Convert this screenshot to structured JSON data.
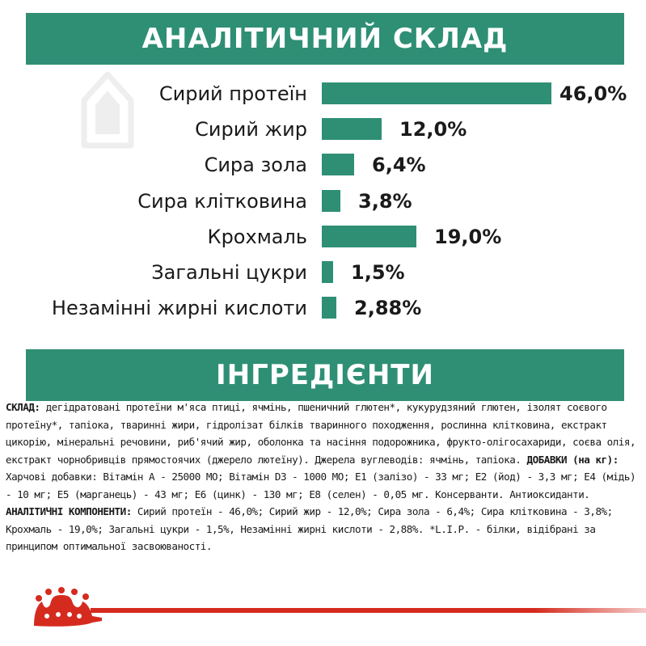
{
  "colors": {
    "accent_green": "#2e8f75",
    "brand_red": "#d52b1e",
    "text": "#1a1a1a"
  },
  "section_analysis": {
    "title": "АНАЛІТИЧНИЙ СКЛАД"
  },
  "section_ingredients": {
    "title": "ІНГРЕДІЄНТИ"
  },
  "chart_data": {
    "type": "bar",
    "orientation": "horizontal",
    "title": "АНАЛІТИЧНИЙ СКЛАД",
    "categories": [
      "Сирий протеїн",
      "Сирий жир",
      "Сира зола",
      "Сира клітковина",
      "Крохмаль",
      "Загальні цукри",
      "Незамінні жирні кислоти"
    ],
    "values": [
      46.0,
      12.0,
      6.4,
      3.8,
      19.0,
      1.5,
      2.88
    ],
    "value_labels": [
      "46,0%",
      "12,0%",
      "6,4%",
      "3,8%",
      "19,0%",
      "1,5%",
      "2,88%"
    ],
    "unit": "%",
    "xlim": [
      0,
      46.0
    ],
    "grid": false,
    "legend": "none"
  },
  "ingredients": {
    "composition_label": "СКЛАД:",
    "composition_text": " дегідратовані протеїни м'яса птиці, ячмінь, пшеничний глютен*, кукурудзяний глютен, ізолят соєвого протеїну*, тапіока, тваринні жири, гідролізат білків тваринного походження, рослинна клітковина, екстракт цикорію, мінеральні речовини, риб'ячий жир, оболонка та насіння подорожника, фрукто-олігосахариди, соєва олія, екстракт чорнобривців прямостоячих (джерело лютеїну). Джерела вуглеводів: ячмінь, тапіока. ",
    "additives_label": "ДОБАВКИ (на кг):",
    "additives_text": " Харчові добавки: Вітамін А - 25000 МО; Вітамін D3 - 1000 МО; E1 (залізо) - 33 мг; E2 (йод) - 3,3 мг; E4 (мідь) - 10 мг; E5 (марганець) - 43 мг; E6 (цинк) - 130 мг; E8 (селен) - 0,05 мг. Консерванти. Антиоксиданти. ",
    "analytical_label": "АНАЛІТИЧНІ КОМПОНЕНТИ:",
    "analytical_text": " Сирий протеїн - 46,0%; Сирий жир - 12,0%; Сира зола - 6,4%; Сира клітковина - 3,8%; Крохмаль - 19,0%; Загальні цукри - 1,5%, Незамінні жирні кислоти - 2,88%. *L.I.P. - білки, відібрані за принципом оптимальної засвоюваності."
  }
}
